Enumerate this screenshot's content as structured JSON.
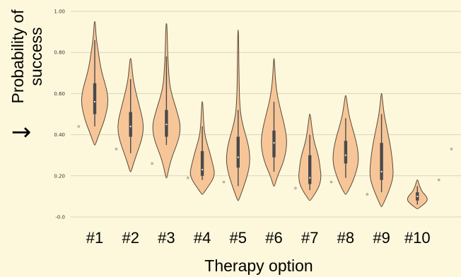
{
  "chart_data": {
    "type": "violin",
    "title": "",
    "xlabel": "Therapy option",
    "ylabel_lines": [
      "Probability of",
      "success"
    ],
    "ylim": [
      0.0,
      1.0
    ],
    "y_ticks": [
      {
        "value": 0.0,
        "label": "-0.0"
      },
      {
        "value": 0.2,
        "label": "0.20"
      },
      {
        "value": 0.4,
        "label": "0.40"
      },
      {
        "value": 0.6,
        "label": "0.60"
      },
      {
        "value": 0.8,
        "label": "0.80"
      },
      {
        "value": 1.0,
        "label": "1.00"
      }
    ],
    "grid": true,
    "colors": {
      "background": "#fdf8dc",
      "violin_fill": "#f6c699",
      "violin_stroke": "#5a4a3a",
      "box": "#4a4a4a",
      "gridline": "#d9d5bd",
      "outlier": "#888888"
    },
    "categories": [
      "#1",
      "#2",
      "#3",
      "#4",
      "#5",
      "#6",
      "#7",
      "#8",
      "#9",
      "#10"
    ],
    "violins": [
      {
        "label": "#1",
        "min": 0.35,
        "max": 0.95,
        "q1": 0.5,
        "median": 0.56,
        "q3": 0.65,
        "whisker_low": 0.44,
        "whisker_high": 0.86,
        "density": [
          [
            0.35,
            0.5
          ],
          [
            0.4,
            4
          ],
          [
            0.45,
            8
          ],
          [
            0.5,
            11
          ],
          [
            0.55,
            13
          ],
          [
            0.6,
            12.5
          ],
          [
            0.65,
            10
          ],
          [
            0.7,
            7
          ],
          [
            0.75,
            5
          ],
          [
            0.8,
            3.5
          ],
          [
            0.85,
            2
          ],
          [
            0.9,
            1
          ],
          [
            0.95,
            0.5
          ]
        ],
        "outlier_x": -0.45,
        "outlier_y": 0.44
      },
      {
        "label": "#2",
        "min": 0.22,
        "max": 0.77,
        "q1": 0.39,
        "median": 0.44,
        "q3": 0.51,
        "whisker_low": 0.31,
        "whisker_high": 0.67,
        "density": [
          [
            0.22,
            0.5
          ],
          [
            0.27,
            3.5
          ],
          [
            0.32,
            7
          ],
          [
            0.37,
            10.5
          ],
          [
            0.42,
            12.5
          ],
          [
            0.47,
            12
          ],
          [
            0.52,
            9.5
          ],
          [
            0.57,
            7
          ],
          [
            0.62,
            4.5
          ],
          [
            0.67,
            2.5
          ],
          [
            0.72,
            1.5
          ],
          [
            0.77,
            0.5
          ]
        ],
        "outlier_x": -0.4,
        "outlier_y": 0.33
      },
      {
        "label": "#3",
        "min": 0.19,
        "max": 0.94,
        "q1": 0.39,
        "median": 0.45,
        "q3": 0.52,
        "whisker_low": 0.35,
        "whisker_high": 0.78,
        "density": [
          [
            0.19,
            0.5
          ],
          [
            0.25,
            3
          ],
          [
            0.3,
            6
          ],
          [
            0.35,
            10
          ],
          [
            0.4,
            13
          ],
          [
            0.45,
            13.5
          ],
          [
            0.5,
            11
          ],
          [
            0.55,
            8
          ],
          [
            0.6,
            5
          ],
          [
            0.65,
            3
          ],
          [
            0.72,
            2
          ],
          [
            0.8,
            1.2
          ],
          [
            0.88,
            0.8
          ],
          [
            0.94,
            0.4
          ]
        ],
        "outlier_x": -0.4,
        "outlier_y": 0.26
      },
      {
        "label": "#4",
        "min": 0.11,
        "max": 0.56,
        "q1": 0.2,
        "median": 0.23,
        "q3": 0.32,
        "whisker_low": 0.18,
        "whisker_high": 0.44,
        "density": [
          [
            0.11,
            0.5
          ],
          [
            0.15,
            6
          ],
          [
            0.18,
            10
          ],
          [
            0.21,
            12
          ],
          [
            0.24,
            11
          ],
          [
            0.28,
            9
          ],
          [
            0.32,
            7
          ],
          [
            0.36,
            4.5
          ],
          [
            0.4,
            2.5
          ],
          [
            0.45,
            1.5
          ],
          [
            0.5,
            1
          ],
          [
            0.56,
            0.4
          ]
        ],
        "outlier_x": -0.4,
        "outlier_y": 0.19
      },
      {
        "label": "#5",
        "min": 0.08,
        "max": 0.91,
        "q1": 0.24,
        "median": 0.29,
        "q3": 0.39,
        "whisker_low": 0.15,
        "whisker_high": 0.52,
        "density": [
          [
            0.08,
            0.5
          ],
          [
            0.12,
            3.5
          ],
          [
            0.17,
            7
          ],
          [
            0.22,
            10
          ],
          [
            0.27,
            11.5
          ],
          [
            0.32,
            11
          ],
          [
            0.37,
            9
          ],
          [
            0.42,
            6
          ],
          [
            0.47,
            3.5
          ],
          [
            0.52,
            2
          ],
          [
            0.6,
            1.2
          ],
          [
            0.7,
            0.8
          ],
          [
            0.8,
            0.6
          ],
          [
            0.91,
            0.3
          ]
        ],
        "outlier_x": -0.4,
        "outlier_y": 0.17
      },
      {
        "label": "#6",
        "min": 0.15,
        "max": 0.77,
        "q1": 0.29,
        "median": 0.36,
        "q3": 0.42,
        "whisker_low": 0.22,
        "whisker_high": 0.56,
        "density": [
          [
            0.15,
            0.5
          ],
          [
            0.2,
            3.5
          ],
          [
            0.25,
            8
          ],
          [
            0.3,
            11
          ],
          [
            0.35,
            12.5
          ],
          [
            0.4,
            12
          ],
          [
            0.45,
            10
          ],
          [
            0.5,
            7.5
          ],
          [
            0.55,
            5
          ],
          [
            0.6,
            3
          ],
          [
            0.66,
            1.6
          ],
          [
            0.72,
            0.8
          ],
          [
            0.77,
            0.3
          ]
        ],
        "outlier_x": 0,
        "outlier_y": -1
      },
      {
        "label": "#7",
        "min": 0.08,
        "max": 0.5,
        "q1": 0.16,
        "median": 0.19,
        "q3": 0.3,
        "whisker_low": 0.13,
        "whisker_high": 0.4,
        "density": [
          [
            0.08,
            0.5
          ],
          [
            0.12,
            6
          ],
          [
            0.16,
            10
          ],
          [
            0.2,
            11
          ],
          [
            0.24,
            10
          ],
          [
            0.28,
            9
          ],
          [
            0.32,
            7
          ],
          [
            0.36,
            4.5
          ],
          [
            0.4,
            3
          ],
          [
            0.45,
            1.6
          ],
          [
            0.5,
            0.4
          ]
        ],
        "outlier_x": -0.4,
        "outlier_y": 0.14
      },
      {
        "label": "#8",
        "min": 0.11,
        "max": 0.59,
        "q1": 0.26,
        "median": 0.3,
        "q3": 0.37,
        "whisker_low": 0.19,
        "whisker_high": 0.48,
        "density": [
          [
            0.11,
            0.5
          ],
          [
            0.15,
            5
          ],
          [
            0.2,
            9
          ],
          [
            0.25,
            12
          ],
          [
            0.3,
            12.5
          ],
          [
            0.35,
            11
          ],
          [
            0.4,
            8.5
          ],
          [
            0.45,
            5.5
          ],
          [
            0.5,
            3
          ],
          [
            0.55,
            1.5
          ],
          [
            0.59,
            0.4
          ]
        ],
        "outlier_x": -0.4,
        "outlier_y": 0.17
      },
      {
        "label": "#9",
        "min": 0.05,
        "max": 0.6,
        "q1": 0.18,
        "median": 0.22,
        "q3": 0.36,
        "whisker_low": 0.12,
        "whisker_high": 0.5,
        "density": [
          [
            0.05,
            0.5
          ],
          [
            0.1,
            5
          ],
          [
            0.15,
            9
          ],
          [
            0.2,
            11.5
          ],
          [
            0.25,
            11
          ],
          [
            0.3,
            10
          ],
          [
            0.35,
            8.5
          ],
          [
            0.4,
            6.5
          ],
          [
            0.45,
            4.5
          ],
          [
            0.5,
            2.5
          ],
          [
            0.55,
            1.3
          ],
          [
            0.6,
            0.4
          ]
        ],
        "outlier_x": -0.4,
        "outlier_y": 0.11
      },
      {
        "label": "#10",
        "min": 0.04,
        "max": 0.18,
        "q1": 0.08,
        "median": 0.1,
        "q3": 0.12,
        "whisker_low": 0.06,
        "whisker_high": 0.15,
        "density": [
          [
            0.04,
            0.5
          ],
          [
            0.06,
            6
          ],
          [
            0.08,
            10
          ],
          [
            0.1,
            9
          ],
          [
            0.12,
            5
          ],
          [
            0.14,
            3
          ],
          [
            0.16,
            1.5
          ],
          [
            0.18,
            0.4
          ]
        ],
        "outlier_x": 0.6,
        "outlier_y": 0.18
      }
    ],
    "extra_outlier": {
      "category_index": 9,
      "x_offset": 0.95,
      "y": 0.33
    },
    "arrow": "→"
  }
}
